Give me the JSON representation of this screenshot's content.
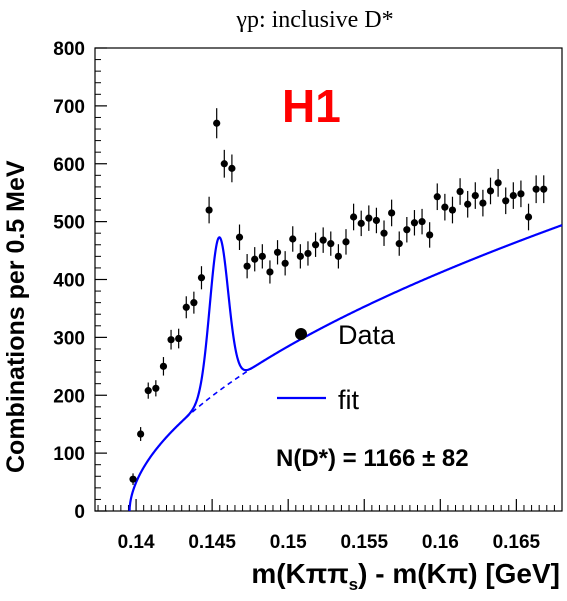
{
  "title": "γp: inclusive D*",
  "brand": {
    "text": "H1",
    "color": "#ff0000"
  },
  "xlabel": {
    "main": "m(Kππ",
    "sub": "s",
    "rest": ") - m(Kπ) [GeV]"
  },
  "ylabel": "Combinations per 0.5 MeV",
  "legend": {
    "data_label": "Data",
    "fit_label": "fit",
    "fit_color": "#0000ff"
  },
  "annotation": "N(D*) = 1166 ± 82",
  "chart_data": {
    "type": "scatter",
    "xlim": [
      0.1373,
      0.168
    ],
    "ylim": [
      0,
      800
    ],
    "xticks": [
      {
        "v": 0.14,
        "label": "0.14"
      },
      {
        "v": 0.145,
        "label": "0.145"
      },
      {
        "v": 0.15,
        "label": "0.15"
      },
      {
        "v": 0.155,
        "label": "0.155"
      },
      {
        "v": 0.16,
        "label": "0.16"
      },
      {
        "v": 0.165,
        "label": "0.165"
      }
    ],
    "yticks": [
      {
        "v": 0,
        "label": "0"
      },
      {
        "v": 100,
        "label": "100"
      },
      {
        "v": 200,
        "label": "200"
      },
      {
        "v": 300,
        "label": "300"
      },
      {
        "v": 400,
        "label": "400"
      },
      {
        "v": 500,
        "label": "500"
      },
      {
        "v": 600,
        "label": "600"
      },
      {
        "v": 700,
        "label": "700"
      },
      {
        "v": 800,
        "label": "800"
      }
    ],
    "series": [
      {
        "name": "Data",
        "points": [
          {
            "x": 0.1398,
            "y": 55,
            "err": 10
          },
          {
            "x": 0.1403,
            "y": 133,
            "err": 12
          },
          {
            "x": 0.1408,
            "y": 208,
            "err": 14
          },
          {
            "x": 0.1413,
            "y": 212,
            "err": 14
          },
          {
            "x": 0.1418,
            "y": 250,
            "err": 16
          },
          {
            "x": 0.1423,
            "y": 296,
            "err": 17
          },
          {
            "x": 0.1428,
            "y": 298,
            "err": 17
          },
          {
            "x": 0.1433,
            "y": 352,
            "err": 19
          },
          {
            "x": 0.1438,
            "y": 360,
            "err": 19
          },
          {
            "x": 0.1443,
            "y": 403,
            "err": 20
          },
          {
            "x": 0.1448,
            "y": 520,
            "err": 23
          },
          {
            "x": 0.1453,
            "y": 670,
            "err": 26
          },
          {
            "x": 0.1458,
            "y": 600,
            "err": 24
          },
          {
            "x": 0.1463,
            "y": 592,
            "err": 24
          },
          {
            "x": 0.1468,
            "y": 473,
            "err": 22
          },
          {
            "x": 0.1473,
            "y": 423,
            "err": 21
          },
          {
            "x": 0.1478,
            "y": 435,
            "err": 21
          },
          {
            "x": 0.1483,
            "y": 440,
            "err": 21
          },
          {
            "x": 0.1488,
            "y": 413,
            "err": 20
          },
          {
            "x": 0.1493,
            "y": 447,
            "err": 21
          },
          {
            "x": 0.1498,
            "y": 428,
            "err": 21
          },
          {
            "x": 0.1503,
            "y": 470,
            "err": 22
          },
          {
            "x": 0.1508,
            "y": 440,
            "err": 21
          },
          {
            "x": 0.1513,
            "y": 445,
            "err": 21
          },
          {
            "x": 0.1518,
            "y": 460,
            "err": 21
          },
          {
            "x": 0.1523,
            "y": 468,
            "err": 22
          },
          {
            "x": 0.1528,
            "y": 462,
            "err": 21
          },
          {
            "x": 0.1533,
            "y": 440,
            "err": 21
          },
          {
            "x": 0.1538,
            "y": 465,
            "err": 22
          },
          {
            "x": 0.1543,
            "y": 508,
            "err": 23
          },
          {
            "x": 0.1548,
            "y": 497,
            "err": 22
          },
          {
            "x": 0.1553,
            "y": 506,
            "err": 22
          },
          {
            "x": 0.1558,
            "y": 502,
            "err": 22
          },
          {
            "x": 0.1563,
            "y": 480,
            "err": 22
          },
          {
            "x": 0.1568,
            "y": 515,
            "err": 23
          },
          {
            "x": 0.1573,
            "y": 462,
            "err": 21
          },
          {
            "x": 0.1578,
            "y": 486,
            "err": 22
          },
          {
            "x": 0.1583,
            "y": 498,
            "err": 22
          },
          {
            "x": 0.1588,
            "y": 500,
            "err": 22
          },
          {
            "x": 0.1593,
            "y": 477,
            "err": 22
          },
          {
            "x": 0.1598,
            "y": 543,
            "err": 23
          },
          {
            "x": 0.1603,
            "y": 525,
            "err": 23
          },
          {
            "x": 0.1608,
            "y": 520,
            "err": 23
          },
          {
            "x": 0.1613,
            "y": 552,
            "err": 23
          },
          {
            "x": 0.1618,
            "y": 530,
            "err": 23
          },
          {
            "x": 0.1623,
            "y": 545,
            "err": 23
          },
          {
            "x": 0.1628,
            "y": 532,
            "err": 23
          },
          {
            "x": 0.1633,
            "y": 553,
            "err": 23
          },
          {
            "x": 0.1638,
            "y": 567,
            "err": 24
          },
          {
            "x": 0.1643,
            "y": 536,
            "err": 23
          },
          {
            "x": 0.1648,
            "y": 545,
            "err": 23
          },
          {
            "x": 0.1653,
            "y": 548,
            "err": 23
          },
          {
            "x": 0.1658,
            "y": 508,
            "err": 23
          },
          {
            "x": 0.1663,
            "y": 556,
            "err": 24
          },
          {
            "x": 0.1668,
            "y": 556,
            "err": 24
          }
        ]
      }
    ],
    "fit": {
      "name": "fit",
      "background": {
        "m0": 0.13957,
        "A": 3500,
        "p": 0.55
      },
      "signal": {
        "mean": 0.14545,
        "sigma": 0.0006,
        "amplitude": 265
      }
    }
  }
}
